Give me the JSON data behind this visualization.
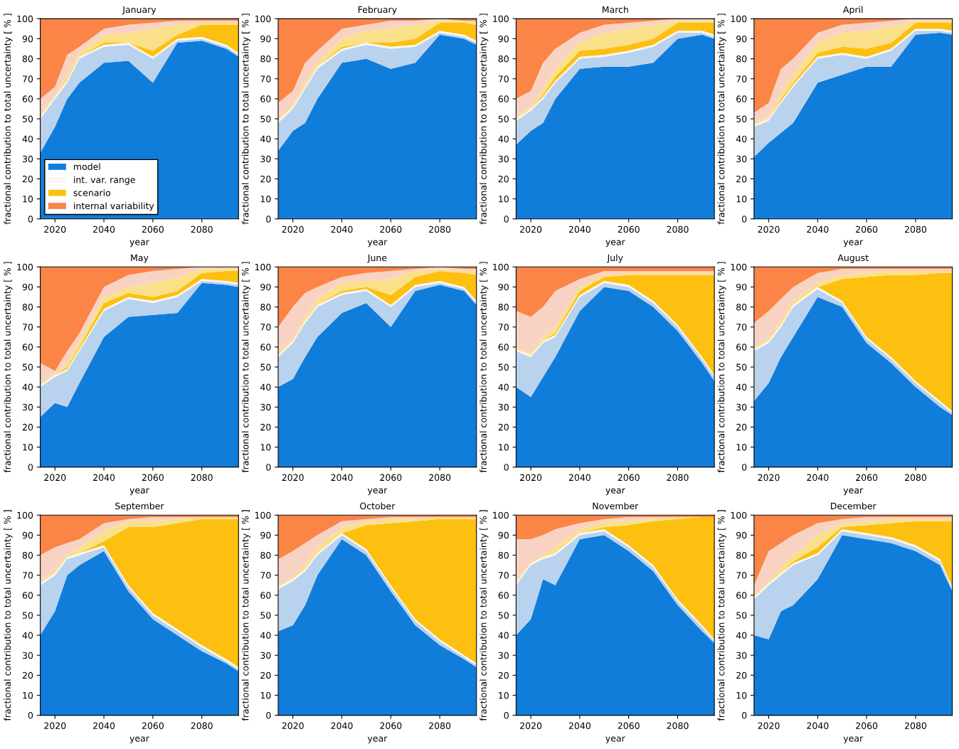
{
  "chart_data": [
    {
      "type": "area",
      "title": "January",
      "xlabel": "year",
      "ylabel": "fractional contribution to total uncertainty [ % ]",
      "stacked": true,
      "legend": "bottom left",
      "x": [
        2014,
        2020,
        2025,
        2030,
        2040,
        2050,
        2060,
        2070,
        2080,
        2090,
        2095
      ],
      "xlim": [
        2014,
        2095
      ],
      "xticks": [
        2020,
        2040,
        2060,
        2080
      ],
      "ylim": [
        0,
        100
      ],
      "yticks": [
        0,
        10,
        20,
        30,
        40,
        50,
        60,
        70,
        80,
        90,
        100
      ],
      "series": [
        {
          "name": "model",
          "color": "#117ddb",
          "values": [
            33,
            46,
            60,
            68,
            78,
            79,
            68,
            88,
            89,
            85,
            81
          ]
        },
        {
          "color": "#b9d3ee",
          "values": [
            17,
            14,
            8,
            12,
            8,
            8,
            12,
            1,
            1,
            1,
            1
          ]
        },
        {
          "name": "int. var. range",
          "color": "#f7f7f7",
          "values": [
            1,
            1,
            1,
            1,
            1,
            1,
            1,
            1,
            1,
            1,
            1
          ]
        },
        {
          "name": "scenario",
          "color": "#fdc010",
          "values": [
            0,
            0,
            0,
            0,
            1,
            0,
            3,
            2,
            6,
            10,
            14
          ]
        },
        {
          "color": "#fbe08a",
          "values": [
            1,
            1,
            3,
            2,
            4,
            5,
            11,
            5,
            1,
            1,
            1
          ]
        },
        {
          "color": "#f8d3c4",
          "values": [
            8,
            4,
            10,
            3,
            3,
            4,
            3,
            2,
            1,
            1,
            1
          ]
        },
        {
          "name": "internal variability",
          "color": "#fb8447",
          "values": [
            40,
            34,
            18,
            14,
            5,
            3,
            2,
            1,
            1,
            1,
            1
          ]
        }
      ]
    },
    {
      "type": "area",
      "title": "February",
      "xlabel": "year",
      "ylabel": "fractional contribution to total uncertainty [ % ]",
      "stacked": true,
      "legend": false,
      "x": [
        2014,
        2020,
        2025,
        2030,
        2040,
        2050,
        2060,
        2070,
        2080,
        2090,
        2095
      ],
      "xlim": [
        2014,
        2095
      ],
      "xticks": [
        2020,
        2040,
        2060,
        2080
      ],
      "ylim": [
        0,
        100
      ],
      "yticks": [
        0,
        10,
        20,
        30,
        40,
        50,
        60,
        70,
        80,
        90,
        100
      ],
      "series": [
        {
          "color": "#117ddb",
          "values": [
            34,
            44,
            48,
            60,
            78,
            80,
            75,
            78,
            92,
            90,
            87
          ]
        },
        {
          "color": "#b9d3ee",
          "values": [
            14,
            11,
            17,
            15,
            6,
            7,
            10,
            8,
            1,
            1,
            1
          ]
        },
        {
          "color": "#f7f7f7",
          "values": [
            1,
            1,
            1,
            1,
            1,
            1,
            1,
            1,
            1,
            1,
            1
          ]
        },
        {
          "color": "#fdc010",
          "values": [
            0,
            0,
            0,
            0,
            1,
            0,
            2,
            3,
            4,
            6,
            8
          ]
        },
        {
          "color": "#fbe08a",
          "values": [
            1,
            1,
            2,
            2,
            4,
            6,
            7,
            7,
            1,
            1,
            1
          ]
        },
        {
          "color": "#f8d3c4",
          "values": [
            8,
            7,
            10,
            6,
            5,
            3,
            4,
            2,
            1,
            0,
            1
          ]
        },
        {
          "color": "#fb8447",
          "values": [
            42,
            36,
            22,
            16,
            5,
            3,
            1,
            1,
            0,
            1,
            1
          ]
        }
      ]
    },
    {
      "type": "area",
      "title": "March",
      "xlabel": "year",
      "ylabel": "fractional contribution to total uncertainty [ % ]",
      "stacked": true,
      "legend": false,
      "x": [
        2014,
        2020,
        2025,
        2030,
        2040,
        2050,
        2060,
        2070,
        2080,
        2090,
        2095
      ],
      "xlim": [
        2014,
        2095
      ],
      "xticks": [
        2020,
        2040,
        2060,
        2080
      ],
      "ylim": [
        0,
        100
      ],
      "yticks": [
        0,
        10,
        20,
        30,
        40,
        50,
        60,
        70,
        80,
        90,
        100
      ],
      "series": [
        {
          "color": "#117ddb",
          "values": [
            37,
            44,
            48,
            60,
            75,
            76,
            76,
            78,
            90,
            92,
            90
          ]
        },
        {
          "color": "#b9d3ee",
          "values": [
            12,
            10,
            12,
            8,
            5,
            5,
            7,
            8,
            3,
            1,
            1
          ]
        },
        {
          "color": "#f7f7f7",
          "values": [
            1,
            1,
            1,
            1,
            1,
            1,
            1,
            1,
            1,
            1,
            1
          ]
        },
        {
          "color": "#fdc010",
          "values": [
            0,
            0,
            1,
            2,
            3,
            3,
            3,
            3,
            4,
            4,
            6
          ]
        },
        {
          "color": "#fbe08a",
          "values": [
            1,
            1,
            3,
            4,
            4,
            8,
            8,
            7,
            1,
            1,
            1
          ]
        },
        {
          "color": "#f8d3c4",
          "values": [
            9,
            8,
            13,
            10,
            5,
            4,
            3,
            2,
            1,
            1,
            1
          ]
        },
        {
          "color": "#fb8447",
          "values": [
            40,
            36,
            22,
            15,
            7,
            3,
            2,
            1,
            0,
            0,
            0
          ]
        }
      ]
    },
    {
      "type": "area",
      "title": "April",
      "xlabel": "year",
      "ylabel": "fractional contribution to total uncertainty [ % ]",
      "stacked": true,
      "legend": false,
      "x": [
        2014,
        2020,
        2025,
        2030,
        2040,
        2050,
        2060,
        2070,
        2080,
        2090,
        2095
      ],
      "xlim": [
        2014,
        2095
      ],
      "xticks": [
        2020,
        2040,
        2060,
        2080
      ],
      "ylim": [
        0,
        100
      ],
      "yticks": [
        0,
        10,
        20,
        30,
        40,
        50,
        60,
        70,
        80,
        90,
        100
      ],
      "series": [
        {
          "color": "#117ddb",
          "values": [
            31,
            38,
            43,
            48,
            68,
            72,
            76,
            76,
            92,
            93,
            92
          ]
        },
        {
          "color": "#b9d3ee",
          "values": [
            15,
            11,
            15,
            18,
            12,
            10,
            4,
            8,
            2,
            1,
            1
          ]
        },
        {
          "color": "#f7f7f7",
          "values": [
            1,
            1,
            1,
            1,
            1,
            1,
            1,
            1,
            1,
            1,
            1
          ]
        },
        {
          "color": "#fdc010",
          "values": [
            0,
            0,
            1,
            1,
            2,
            3,
            4,
            3,
            3,
            3,
            4
          ]
        },
        {
          "color": "#fbe08a",
          "values": [
            1,
            1,
            3,
            4,
            5,
            7,
            9,
            8,
            1,
            1,
            1
          ]
        },
        {
          "color": "#f8d3c4",
          "values": [
            5,
            7,
            12,
            8,
            5,
            4,
            4,
            3,
            1,
            1,
            1
          ]
        },
        {
          "color": "#fb8447",
          "values": [
            47,
            42,
            25,
            20,
            7,
            3,
            2,
            1,
            0,
            0,
            0
          ]
        }
      ]
    },
    {
      "type": "area",
      "title": "May",
      "xlabel": "year",
      "ylabel": "fractional contribution to total uncertainty [ % ]",
      "stacked": true,
      "legend": false,
      "x": [
        2014,
        2020,
        2025,
        2030,
        2040,
        2050,
        2060,
        2070,
        2080,
        2090,
        2095
      ],
      "xlim": [
        2014,
        2095
      ],
      "xticks": [
        2020,
        2040,
        2060,
        2080
      ],
      "ylim": [
        0,
        100
      ],
      "yticks": [
        0,
        10,
        20,
        30,
        40,
        50,
        60,
        70,
        80,
        90,
        100
      ],
      "series": [
        {
          "color": "#117ddb",
          "values": [
            25,
            32,
            30,
            42,
            65,
            75,
            76,
            77,
            92,
            91,
            90
          ]
        },
        {
          "color": "#b9d3ee",
          "values": [
            15,
            13,
            18,
            16,
            13,
            9,
            6,
            8,
            1,
            1,
            1
          ]
        },
        {
          "color": "#f7f7f7",
          "values": [
            1,
            1,
            1,
            1,
            1,
            1,
            1,
            1,
            1,
            1,
            1
          ]
        },
        {
          "color": "#fdc010",
          "values": [
            0,
            0,
            1,
            1,
            3,
            2,
            2,
            2,
            3,
            5,
            6
          ]
        },
        {
          "color": "#fbe08a",
          "values": [
            1,
            1,
            2,
            3,
            3,
            3,
            7,
            7,
            2,
            1,
            1
          ]
        },
        {
          "color": "#f8d3c4",
          "values": [
            10,
            1,
            6,
            4,
            5,
            6,
            6,
            4,
            1,
            1,
            1
          ]
        },
        {
          "color": "#fb8447",
          "values": [
            48,
            52,
            42,
            33,
            10,
            4,
            2,
            1,
            0,
            0,
            0
          ]
        }
      ]
    },
    {
      "type": "area",
      "title": "June",
      "xlabel": "year",
      "ylabel": "fractional contribution to total uncertainty [ % ]",
      "stacked": true,
      "legend": false,
      "x": [
        2014,
        2020,
        2025,
        2030,
        2040,
        2050,
        2060,
        2070,
        2080,
        2090,
        2095
      ],
      "xlim": [
        2014,
        2095
      ],
      "xticks": [
        2020,
        2040,
        2060,
        2080
      ],
      "ylim": [
        0,
        100
      ],
      "yticks": [
        0,
        10,
        20,
        30,
        40,
        50,
        60,
        70,
        80,
        90,
        100
      ],
      "series": [
        {
          "color": "#117ddb",
          "values": [
            40,
            44,
            55,
            65,
            77,
            82,
            70,
            88,
            91,
            88,
            81
          ]
        },
        {
          "color": "#b9d3ee",
          "values": [
            15,
            18,
            17,
            15,
            9,
            6,
            10,
            2,
            1,
            1,
            1
          ]
        },
        {
          "color": "#f7f7f7",
          "values": [
            1,
            1,
            1,
            1,
            1,
            1,
            1,
            1,
            1,
            1,
            1
          ]
        },
        {
          "color": "#fdc010",
          "values": [
            0,
            0,
            0,
            0,
            1,
            1,
            5,
            4,
            5,
            7,
            13
          ]
        },
        {
          "color": "#fbe08a",
          "values": [
            1,
            1,
            2,
            3,
            4,
            3,
            8,
            3,
            1,
            1,
            2
          ]
        },
        {
          "color": "#f8d3c4",
          "values": [
            13,
            16,
            12,
            6,
            3,
            4,
            4,
            1,
            1,
            1,
            1
          ]
        },
        {
          "color": "#fb8447",
          "values": [
            30,
            20,
            13,
            10,
            5,
            3,
            2,
            1,
            0,
            1,
            1
          ]
        }
      ]
    },
    {
      "type": "area",
      "title": "July",
      "xlabel": "year",
      "ylabel": "fractional contribution to total uncertainty [ % ]",
      "stacked": true,
      "legend": false,
      "x": [
        2014,
        2020,
        2025,
        2030,
        2040,
        2050,
        2060,
        2070,
        2080,
        2090,
        2095
      ],
      "xlim": [
        2014,
        2095
      ],
      "xticks": [
        2020,
        2040,
        2060,
        2080
      ],
      "ylim": [
        0,
        100
      ],
      "yticks": [
        0,
        10,
        20,
        30,
        40,
        50,
        60,
        70,
        80,
        90,
        100
      ],
      "series": [
        {
          "color": "#117ddb",
          "values": [
            40,
            35,
            45,
            55,
            78,
            90,
            88,
            80,
            68,
            52,
            43
          ]
        },
        {
          "color": "#b9d3ee",
          "values": [
            18,
            20,
            17,
            10,
            7,
            2,
            2,
            2,
            2,
            2,
            2
          ]
        },
        {
          "color": "#f7f7f7",
          "values": [
            1,
            1,
            1,
            1,
            1,
            1,
            1,
            1,
            1,
            1,
            1
          ]
        },
        {
          "color": "#fdc010",
          "values": [
            0,
            0,
            0,
            1,
            2,
            2,
            5,
            13,
            25,
            41,
            50
          ]
        },
        {
          "color": "#fbe08a",
          "values": [
            1,
            1,
            2,
            3,
            2,
            1,
            1,
            1,
            1,
            1,
            1
          ]
        },
        {
          "color": "#f8d3c4",
          "values": [
            18,
            18,
            15,
            18,
            4,
            2,
            1,
            1,
            1,
            1,
            1
          ]
        },
        {
          "color": "#fb8447",
          "values": [
            22,
            25,
            20,
            12,
            6,
            2,
            2,
            2,
            2,
            2,
            2
          ]
        }
      ]
    },
    {
      "type": "area",
      "title": "August",
      "xlabel": "year",
      "ylabel": "fractional contribution to total uncertainty [ % ]",
      "stacked": true,
      "legend": false,
      "x": [
        2014,
        2020,
        2025,
        2030,
        2040,
        2050,
        2060,
        2070,
        2080,
        2090,
        2095
      ],
      "xlim": [
        2014,
        2095
      ],
      "xticks": [
        2020,
        2040,
        2060,
        2080
      ],
      "ylim": [
        0,
        100
      ],
      "yticks": [
        0,
        10,
        20,
        30,
        40,
        50,
        60,
        70,
        80,
        90,
        100
      ],
      "series": [
        {
          "color": "#117ddb",
          "values": [
            33,
            42,
            55,
            65,
            85,
            80,
            62,
            52,
            40,
            30,
            26
          ]
        },
        {
          "color": "#b9d3ee",
          "values": [
            25,
            20,
            15,
            15,
            4,
            2,
            2,
            2,
            2,
            2,
            1
          ]
        },
        {
          "color": "#f7f7f7",
          "values": [
            1,
            1,
            1,
            1,
            1,
            1,
            1,
            1,
            1,
            1,
            1
          ]
        },
        {
          "color": "#fdc010",
          "values": [
            0,
            0,
            0,
            0,
            0,
            11,
            30,
            41,
            53,
            64,
            69
          ]
        },
        {
          "color": "#fbe08a",
          "values": [
            1,
            1,
            2,
            2,
            2,
            2,
            2,
            2,
            2,
            1,
            1
          ]
        },
        {
          "color": "#f8d3c4",
          "values": [
            12,
            14,
            11,
            7,
            5,
            3,
            2,
            1,
            1,
            1,
            1
          ]
        },
        {
          "color": "#fb8447",
          "values": [
            28,
            22,
            16,
            10,
            3,
            1,
            1,
            1,
            1,
            1,
            1
          ]
        }
      ]
    },
    {
      "type": "area",
      "title": "September",
      "xlabel": "year",
      "ylabel": "fractional contribution to total uncertainty [ % ]",
      "stacked": true,
      "legend": false,
      "x": [
        2014,
        2020,
        2025,
        2030,
        2040,
        2050,
        2060,
        2070,
        2080,
        2090,
        2095
      ],
      "xlim": [
        2014,
        2095
      ],
      "xticks": [
        2020,
        2040,
        2060,
        2080
      ],
      "ylim": [
        0,
        100
      ],
      "yticks": [
        0,
        10,
        20,
        30,
        40,
        50,
        60,
        70,
        80,
        90,
        100
      ],
      "series": [
        {
          "color": "#117ddb",
          "values": [
            40,
            52,
            70,
            75,
            82,
            62,
            48,
            40,
            32,
            26,
            22
          ]
        },
        {
          "color": "#b9d3ee",
          "values": [
            25,
            18,
            8,
            5,
            2,
            2,
            2,
            2,
            2,
            1,
            1
          ]
        },
        {
          "color": "#f7f7f7",
          "values": [
            1,
            1,
            1,
            1,
            1,
            1,
            1,
            1,
            1,
            1,
            1
          ]
        },
        {
          "color": "#fdc010",
          "values": [
            0,
            0,
            0,
            0,
            2,
            29,
            43,
            53,
            63,
            70,
            74
          ]
        },
        {
          "color": "#fbe08a",
          "values": [
            1,
            1,
            1,
            3,
            5,
            3,
            3,
            2,
            1,
            1,
            1
          ]
        },
        {
          "color": "#f8d3c4",
          "values": [
            13,
            12,
            6,
            4,
            4,
            1,
            2,
            1,
            0,
            0,
            0
          ]
        },
        {
          "color": "#fb8447",
          "values": [
            20,
            16,
            14,
            12,
            4,
            2,
            1,
            1,
            1,
            1,
            1
          ]
        }
      ]
    },
    {
      "type": "area",
      "title": "October",
      "xlabel": "year",
      "ylabel": "fractional contribution to total uncertainty [ % ]",
      "stacked": true,
      "legend": false,
      "x": [
        2014,
        2020,
        2025,
        2030,
        2040,
        2050,
        2060,
        2070,
        2080,
        2090,
        2095
      ],
      "xlim": [
        2014,
        2095
      ],
      "xticks": [
        2020,
        2040,
        2060,
        2080
      ],
      "ylim": [
        0,
        100
      ],
      "yticks": [
        0,
        10,
        20,
        30,
        40,
        50,
        60,
        70,
        80,
        90,
        100
      ],
      "series": [
        {
          "color": "#117ddb",
          "values": [
            42,
            45,
            55,
            70,
            88,
            80,
            62,
            45,
            35,
            28,
            24
          ]
        },
        {
          "color": "#b9d3ee",
          "values": [
            21,
            22,
            17,
            10,
            2,
            2,
            2,
            2,
            2,
            1,
            1
          ]
        },
        {
          "color": "#f7f7f7",
          "values": [
            1,
            1,
            1,
            1,
            1,
            1,
            1,
            1,
            1,
            1,
            1
          ]
        },
        {
          "color": "#fdc010",
          "values": [
            0,
            0,
            0,
            0,
            0,
            12,
            31,
            49,
            60,
            68,
            72
          ]
        },
        {
          "color": "#fbe08a",
          "values": [
            1,
            1,
            2,
            3,
            3,
            2,
            2,
            1,
            1,
            1,
            1
          ]
        },
        {
          "color": "#f8d3c4",
          "values": [
            13,
            13,
            11,
            6,
            3,
            1,
            1,
            1,
            0,
            0,
            0
          ]
        },
        {
          "color": "#fb8447",
          "values": [
            22,
            18,
            14,
            10,
            3,
            2,
            1,
            1,
            1,
            1,
            1
          ]
        }
      ]
    },
    {
      "type": "area",
      "title": "November",
      "xlabel": "year",
      "ylabel": "fractional contribution to total uncertainty [ % ]",
      "stacked": true,
      "legend": false,
      "x": [
        2014,
        2020,
        2025,
        2030,
        2040,
        2050,
        2060,
        2070,
        2080,
        2090,
        2095
      ],
      "xlim": [
        2014,
        2095
      ],
      "xticks": [
        2020,
        2040,
        2060,
        2080
      ],
      "ylim": [
        0,
        100
      ],
      "yticks": [
        0,
        10,
        20,
        30,
        40,
        50,
        60,
        70,
        80,
        90,
        100
      ],
      "series": [
        {
          "color": "#117ddb",
          "values": [
            40,
            48,
            68,
            65,
            88,
            90,
            82,
            72,
            55,
            42,
            36
          ]
        },
        {
          "color": "#b9d3ee",
          "values": [
            25,
            27,
            10,
            15,
            2,
            2,
            2,
            2,
            2,
            2,
            1
          ]
        },
        {
          "color": "#f7f7f7",
          "values": [
            1,
            1,
            1,
            1,
            1,
            1,
            1,
            1,
            1,
            1,
            1
          ]
        },
        {
          "color": "#fdc010",
          "values": [
            0,
            0,
            0,
            0,
            0,
            1,
            10,
            22,
            40,
            54,
            61
          ]
        },
        {
          "color": "#fbe08a",
          "values": [
            1,
            1,
            1,
            3,
            2,
            3,
            2,
            1,
            1,
            0,
            0
          ]
        },
        {
          "color": "#f8d3c4",
          "values": [
            21,
            11,
            10,
            9,
            3,
            1,
            2,
            1,
            0,
            0,
            0
          ]
        },
        {
          "color": "#fb8447",
          "values": [
            12,
            12,
            10,
            7,
            4,
            2,
            1,
            1,
            1,
            1,
            1
          ]
        }
      ]
    },
    {
      "type": "area",
      "title": "December",
      "xlabel": "year",
      "ylabel": "fractional contribution to total uncertainty [ % ]",
      "stacked": true,
      "legend": false,
      "x": [
        2014,
        2020,
        2025,
        2030,
        2040,
        2050,
        2060,
        2070,
        2080,
        2090,
        2095
      ],
      "xlim": [
        2014,
        2095
      ],
      "xticks": [
        2020,
        2040,
        2060,
        2080
      ],
      "ylim": [
        0,
        100
      ],
      "yticks": [
        0,
        10,
        20,
        30,
        40,
        50,
        60,
        70,
        80,
        90,
        100
      ],
      "series": [
        {
          "color": "#117ddb",
          "values": [
            40,
            38,
            52,
            55,
            68,
            90,
            88,
            86,
            82,
            75,
            62
          ]
        },
        {
          "color": "#b9d3ee",
          "values": [
            18,
            27,
            18,
            20,
            12,
            2,
            2,
            2,
            2,
            2,
            1
          ]
        },
        {
          "color": "#f7f7f7",
          "values": [
            1,
            1,
            1,
            1,
            1,
            1,
            1,
            1,
            1,
            1,
            1
          ]
        },
        {
          "color": "#fdc010",
          "values": [
            0,
            0,
            0,
            1,
            3,
            1,
            4,
            7,
            12,
            19,
            33
          ]
        },
        {
          "color": "#fbe08a",
          "values": [
            1,
            1,
            3,
            3,
            6,
            2,
            2,
            2,
            1,
            1,
            1
          ]
        },
        {
          "color": "#f8d3c4",
          "values": [
            5,
            15,
            12,
            10,
            6,
            2,
            2,
            1,
            1,
            1,
            1
          ]
        },
        {
          "color": "#fb8447",
          "values": [
            35,
            18,
            14,
            10,
            4,
            2,
            1,
            1,
            1,
            1,
            1
          ]
        }
      ]
    }
  ]
}
